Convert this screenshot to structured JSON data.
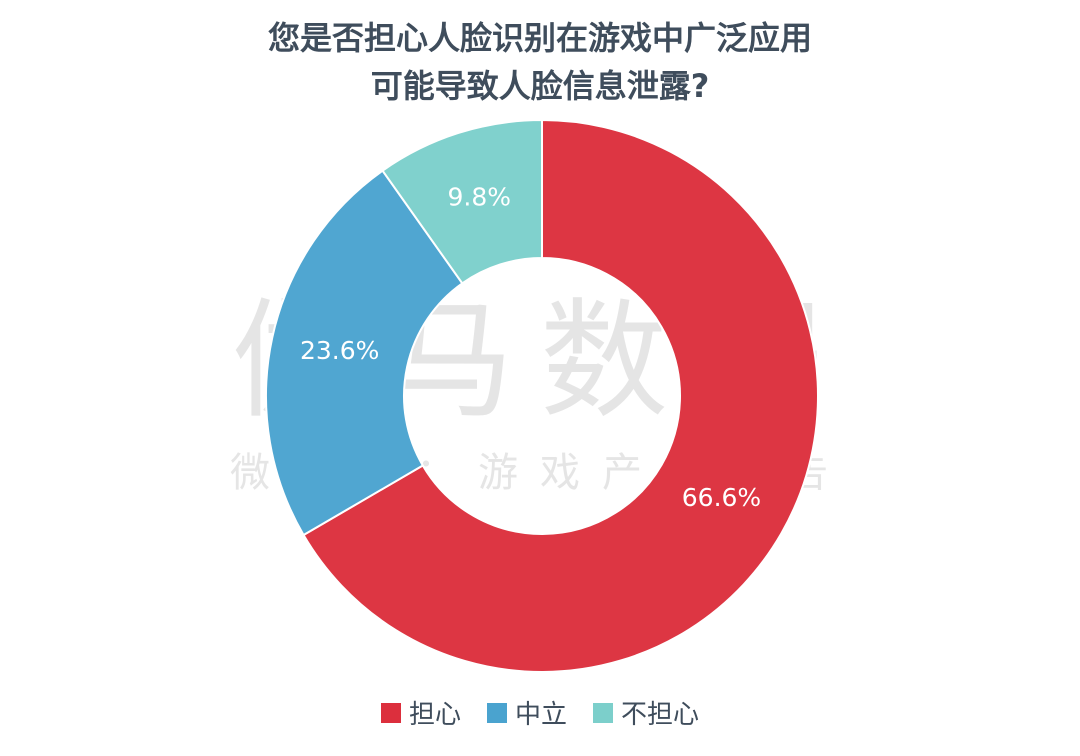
{
  "chart_data": {
    "type": "pie",
    "variant": "donut",
    "title": [
      "您是否担心人脸识别在游戏中广泛应用",
      "可能导致人脸信息泄露?"
    ],
    "series": [
      {
        "name": "担心",
        "value": 66.6,
        "label": "66.6%",
        "color": "#dc2f3d"
      },
      {
        "name": "中立",
        "value": 23.6,
        "label": "23.6%",
        "color": "#4aa3cf"
      },
      {
        "name": "不担心",
        "value": 9.8,
        "label": "9.8%",
        "color": "#7ccfcb"
      }
    ],
    "start": "12 o'clock",
    "direction": "clockwise",
    "legend_position": "bottom"
  },
  "watermark": {
    "main": "伽马数据",
    "sub": "微信号：游戏产业报告"
  }
}
